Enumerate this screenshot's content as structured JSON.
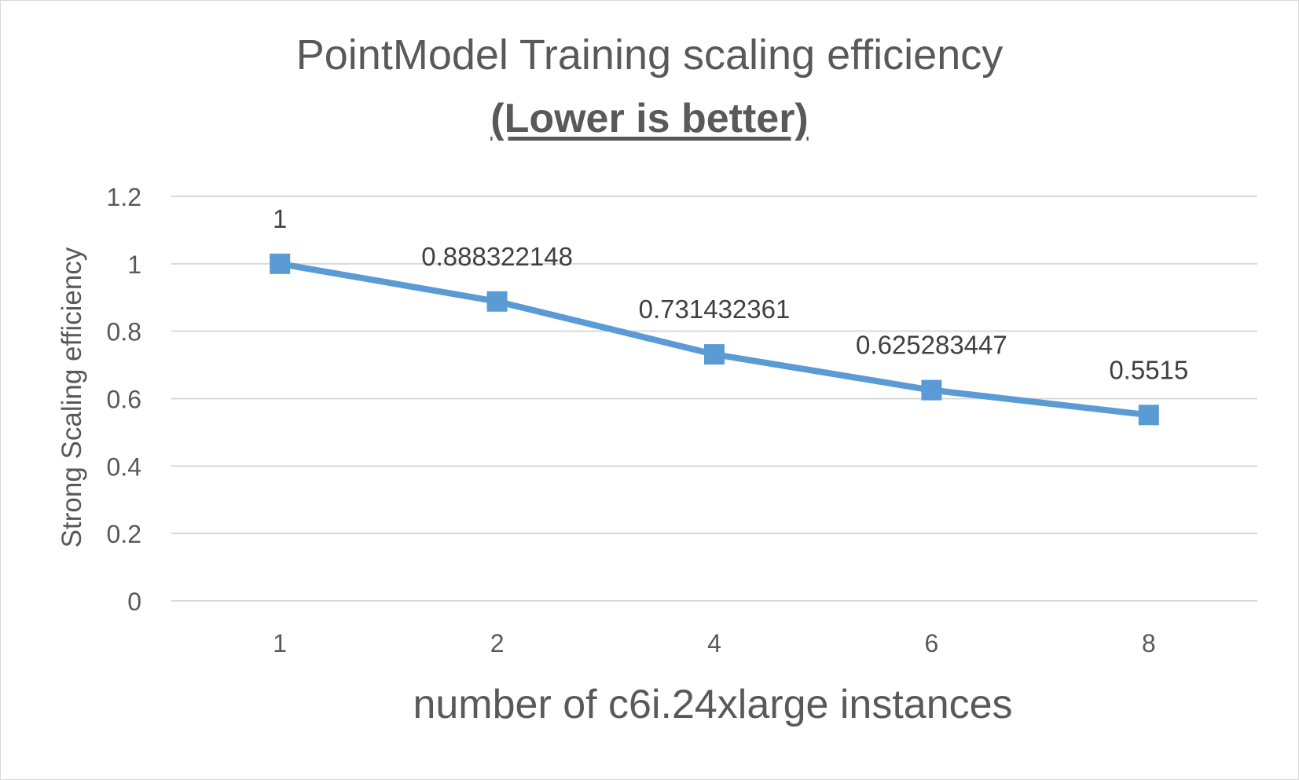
{
  "chart_data": {
    "type": "line",
    "title": "PointModel Training scaling efficiency",
    "subtitle": "(Lower is better)",
    "xlabel": "number of c6i.24xlarge instances",
    "ylabel": "Strong Scaling efficiency",
    "categories": [
      "1",
      "2",
      "4",
      "6",
      "8"
    ],
    "series": [
      {
        "values": [
          1,
          0.888322148,
          0.731432361,
          0.625283447,
          0.5515
        ],
        "labels": [
          "1",
          "0.888322148",
          "0.731432361",
          "0.625283447",
          "0.5515"
        ],
        "color": "#5b9bd5"
      }
    ],
    "yticks": [
      "0",
      "0.2",
      "0.4",
      "0.6",
      "0.8",
      "1",
      "1.2"
    ],
    "ylim": [
      0,
      1.2
    ],
    "grid": true,
    "legend": "none"
  }
}
